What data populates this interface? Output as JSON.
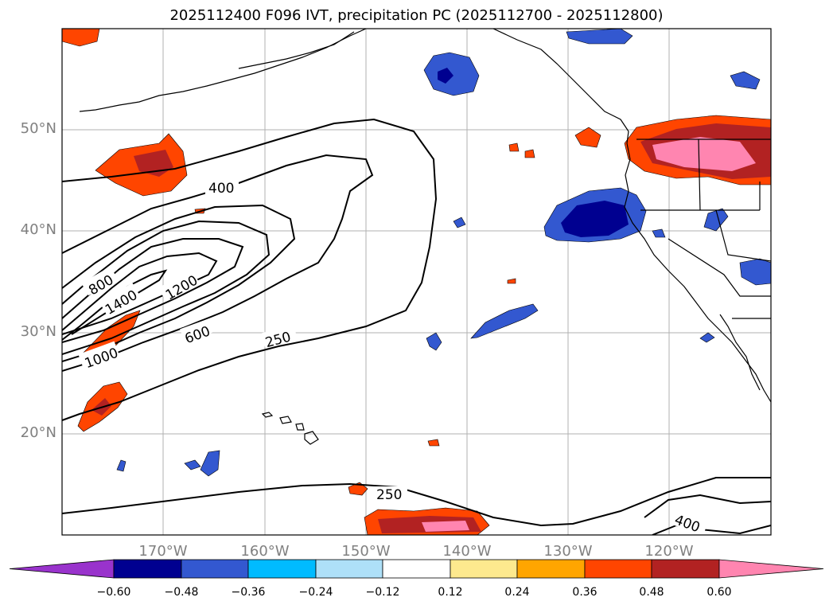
{
  "title": "2025112400 F096 IVT, precipitation PC (2025112700 - 2025112800)",
  "lat_labels": [
    "50°N",
    "40°N",
    "30°N",
    "20°N"
  ],
  "lon_labels": [
    "170°W",
    "160°W",
    "150°W",
    "140°W",
    "130°W",
    "120°W"
  ],
  "contour_labels": [
    "400",
    "800",
    "1400",
    "1200",
    "1000",
    "600",
    "250",
    "250",
    "400"
  ],
  "colorbar": {
    "ticks": [
      "−0.60",
      "−0.48",
      "−0.36",
      "−0.24",
      "−0.12",
      "0.12",
      "0.24",
      "0.36",
      "0.48",
      "0.60"
    ],
    "colors": [
      "#9933cc",
      "#000090",
      "#3358d0",
      "#00bbff",
      "#aee0f8",
      "#ffffff",
      "#fde98e",
      "#ffa500",
      "#ff4500",
      "#b22222",
      "#ff85b0"
    ]
  }
}
